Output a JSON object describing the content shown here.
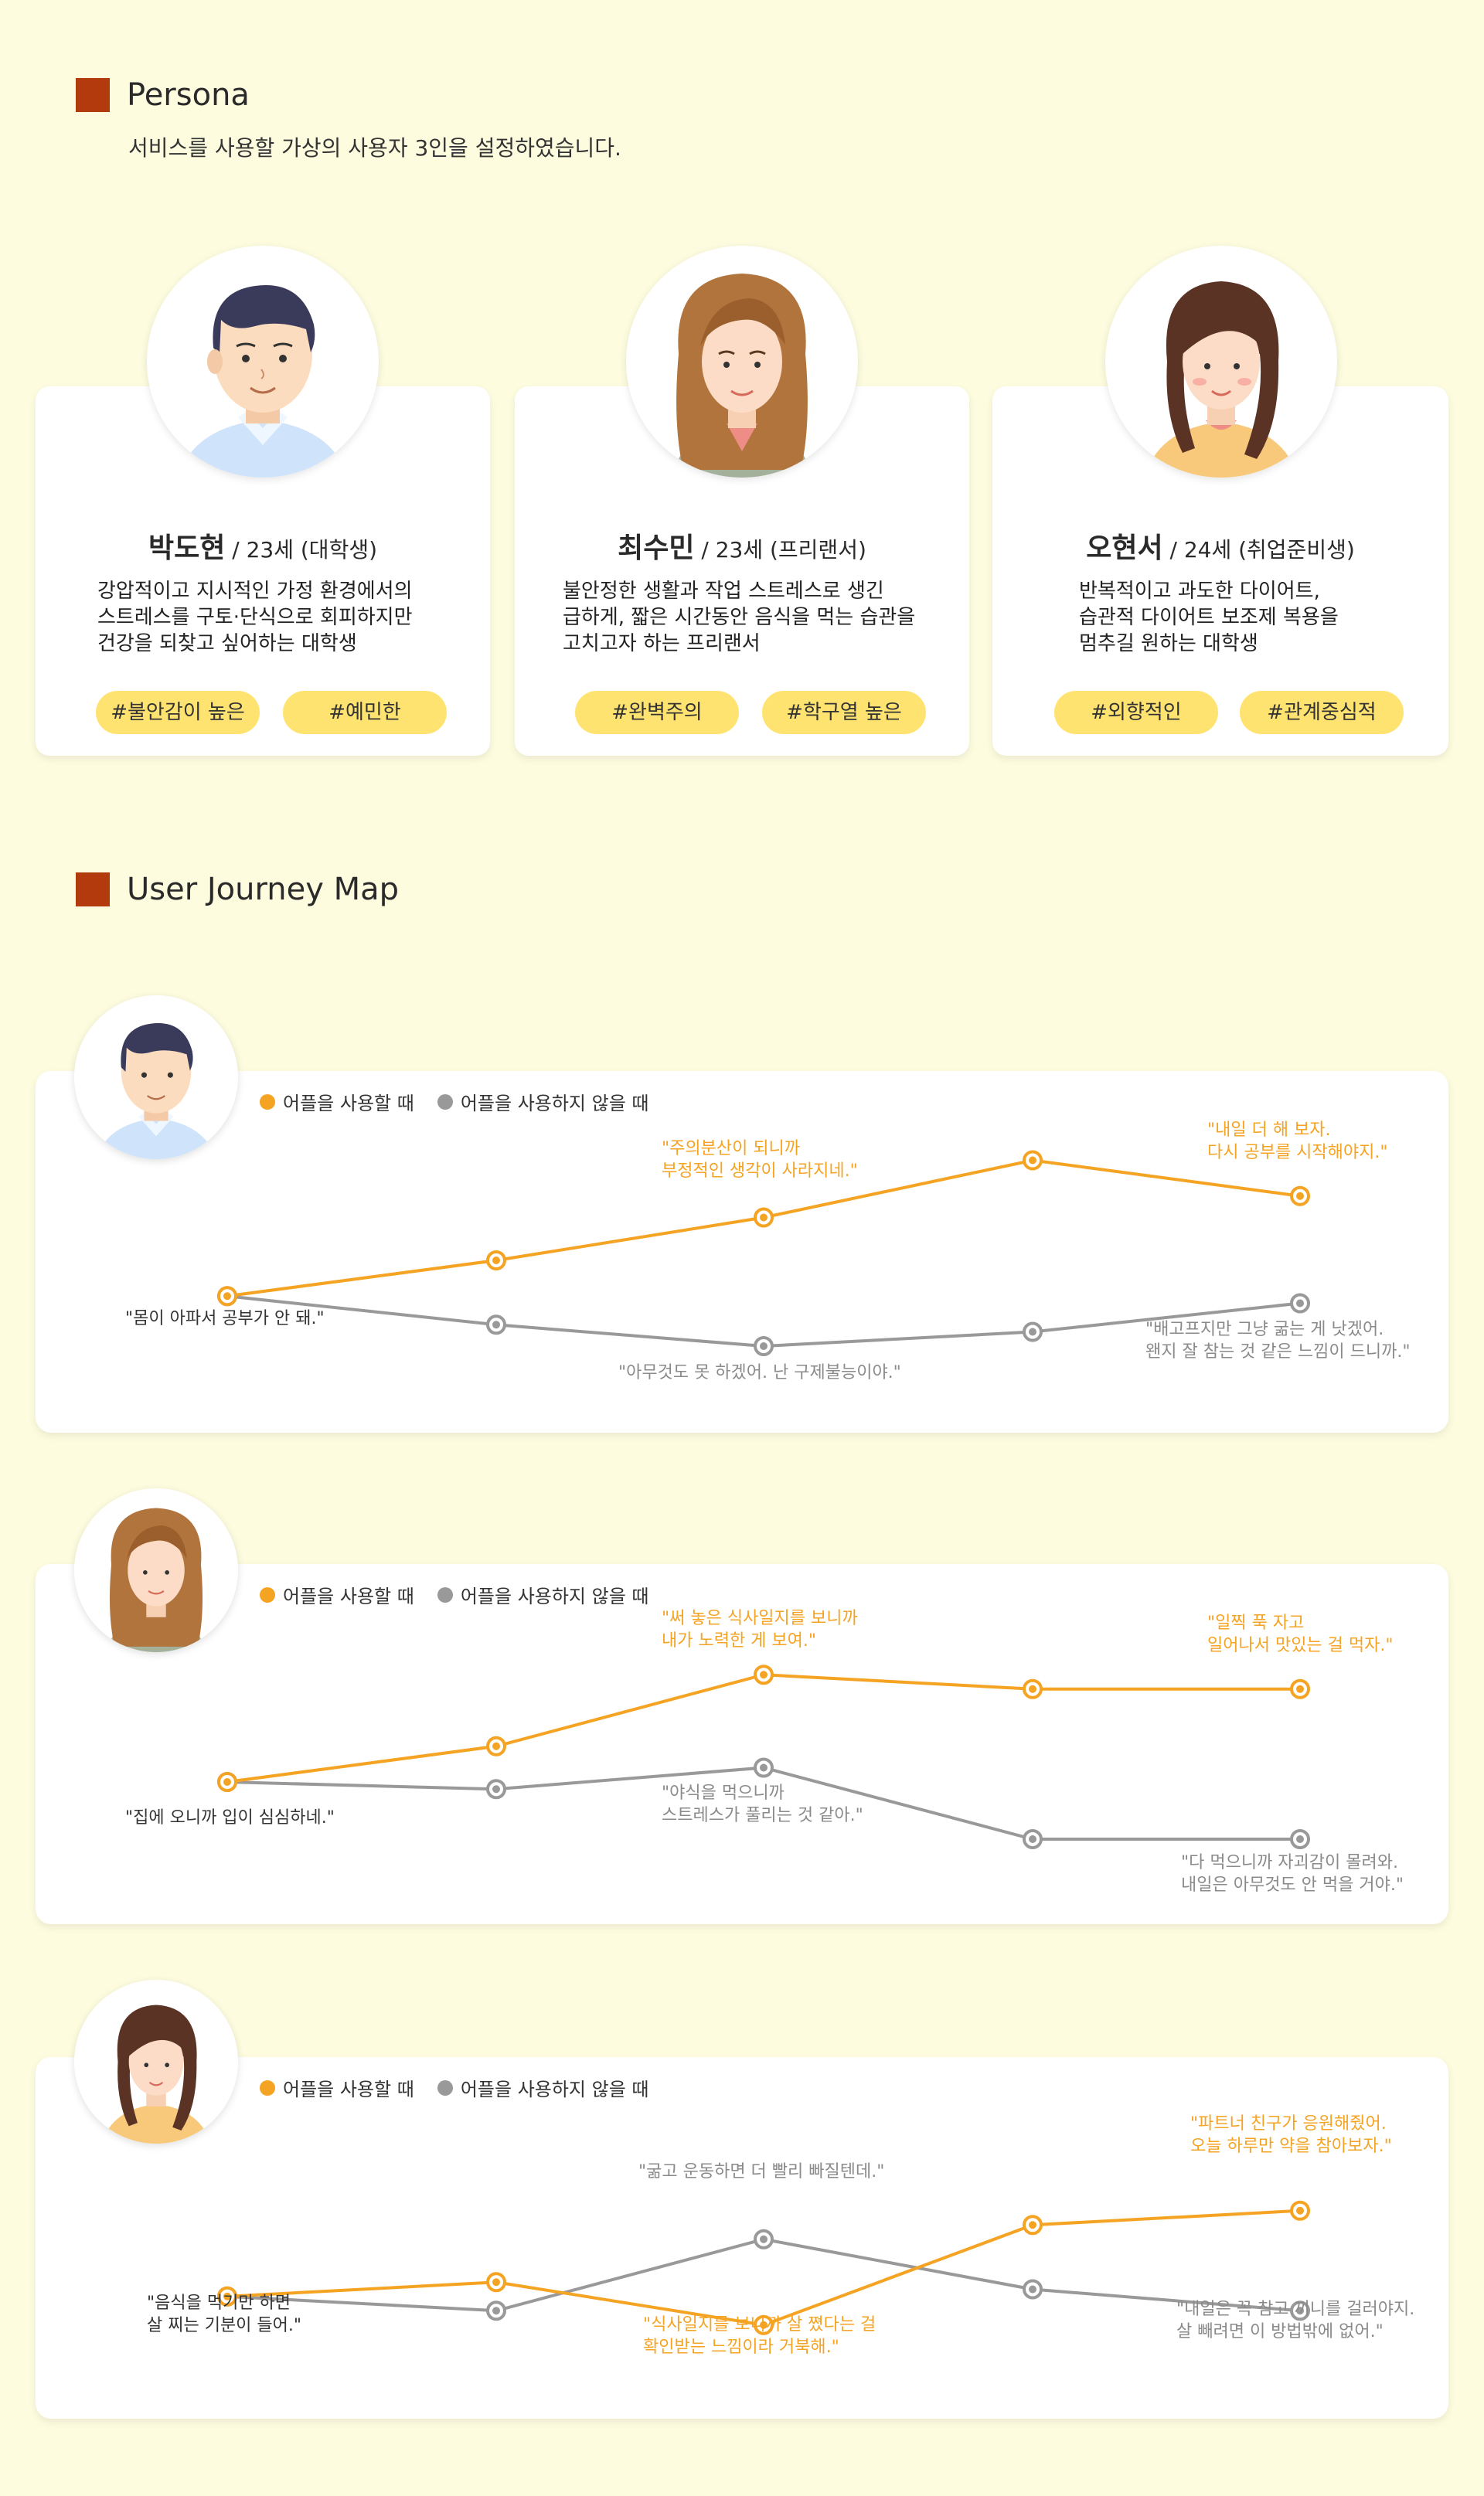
{
  "persona": {
    "title": "Persona",
    "subtitle": "서비스를 사용할 가상의 사용자 3인을 설정하였습니다.",
    "cards": [
      {
        "name": "박도현",
        "info": " / 23세 (대학생)",
        "desc": [
          "강압적이고 지시적인 가정 환경에서의",
          "스트레스를 구토·단식으로 회피하지만",
          "건강을 되찾고 싶어하는 대학생"
        ],
        "tags": [
          "#불안감이 높은",
          "#예민한"
        ]
      },
      {
        "name": "최수민",
        "info": " / 23세 (프리랜서)",
        "desc": [
          "불안정한 생활과 작업 스트레스로 생긴",
          "급하게, 짧은 시간동안 음식을 먹는 습관을",
          "고치고자 하는 프리랜서"
        ],
        "tags": [
          "#완벽주의",
          "#학구열 높은"
        ]
      },
      {
        "name": "오현서",
        "info": " / 24세 (취업준비생)",
        "desc": [
          "반복적이고 과도한 다이어트,",
          "습관적 다이어트 보조제 복용을",
          "멈추길 원하는 대학생"
        ],
        "tags": [
          "#외향적인",
          "#관계중심적"
        ]
      }
    ]
  },
  "journey": {
    "title": "User Journey Map",
    "legend": {
      "on": "어플을 사용할 때",
      "off": "어플을 사용하지 않을 때"
    },
    "colors": {
      "on": "#f5a323",
      "off": "#999999",
      "section": "#b23a0c",
      "tag": "#ffe371"
    }
  },
  "chart_data": [
    {
      "type": "line",
      "x": [
        1,
        2,
        3,
        4,
        5
      ],
      "series": [
        {
          "name": "어플을 사용할 때",
          "values": [
            2.5,
            3.0,
            3.6,
            4.4,
            3.9
          ]
        },
        {
          "name": "어플을 사용하지 않을 때",
          "values": [
            2.5,
            2.1,
            1.8,
            2.0,
            2.4
          ]
        }
      ],
      "annotations": {
        "start": "\"몸이 아파서 공부가 안 돼.\"",
        "on3": [
          "\"주의분산이 되니까",
          "부정적인 생각이 사라지네.\""
        ],
        "on5": [
          "\"내일 더 해 보자.",
          "다시 공부를 시작해야지.\""
        ],
        "off3": "\"아무것도 못 하겠어. 난 구제불능이야.\"",
        "off5": [
          "\"배고프지만 그냥 굶는 게 낫겠어.",
          "왠지 잘 참는 것 같은 느낌이 드니까.\""
        ]
      }
    },
    {
      "type": "line",
      "x": [
        1,
        2,
        3,
        4,
        5
      ],
      "series": [
        {
          "name": "어플을 사용할 때",
          "values": [
            2.6,
            3.1,
            4.1,
            3.9,
            3.9
          ]
        },
        {
          "name": "어플을 사용하지 않을 때",
          "values": [
            2.6,
            2.5,
            2.8,
            1.8,
            1.8
          ]
        }
      ],
      "annotations": {
        "start": "\"집에 오니까 입이 심심하네.\"",
        "on3": [
          "\"써 놓은 식사일지를 보니까",
          "내가 노력한 게 보여.\""
        ],
        "on5": [
          "\"일찍 푹 자고",
          "일어나서 맛있는 걸 먹자.\""
        ],
        "off3": [
          "\"야식을 먹으니까",
          "스트레스가 풀리는 것 같아.\""
        ],
        "off5": [
          "\"다 먹으니까 자괴감이 몰려와.",
          "내일은 아무것도 안 먹을 거야.\""
        ]
      }
    },
    {
      "type": "line",
      "x": [
        1,
        2,
        3,
        4,
        5
      ],
      "series": [
        {
          "name": "어플을 사용할 때",
          "values": [
            2.3,
            2.5,
            1.9,
            3.3,
            3.5
          ]
        },
        {
          "name": "어플을 사용하지 않을 때",
          "values": [
            2.3,
            2.1,
            3.1,
            2.4,
            2.1
          ]
        }
      ],
      "annotations": {
        "start": [
          "\"음식을 먹기만 하면",
          "살 찌는 기분이 들어.\""
        ],
        "off3": "\"굶고 운동하면 더 빨리 빠질텐데.\"",
        "on3": [
          "\"식사일지를 보니까 살 쪘다는 걸",
          "확인받는 느낌이라 거북해.\""
        ],
        "on5": [
          "\"파트너 친구가 응원해줬어.",
          "오늘 하루만 약을 참아보자.\""
        ],
        "off5": [
          "\"내일은 꼭 참고 끼니를 걸러야지.",
          "살 빼려면 이 방법밖에 없어.\""
        ]
      }
    }
  ]
}
